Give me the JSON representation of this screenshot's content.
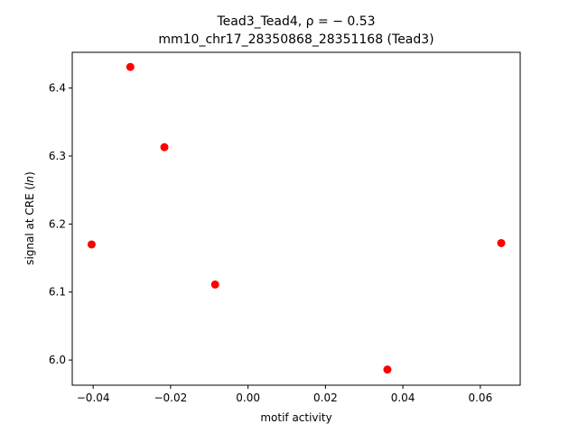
{
  "chart_data": {
    "type": "scatter",
    "title_line1": "Tead3_Tead4, ρ = − 0.53",
    "title_line2": "mm10_chr17_28350868_28351168 (Tead3)",
    "xlabel": "motif activity",
    "ylabel_prefix": "signal at CRE (",
    "ylabel_italic": "ln",
    "ylabel_suffix": ")",
    "xlim": [
      -0.0454,
      0.0703
    ],
    "ylim": [
      5.963,
      6.4525
    ],
    "x_ticks": [
      {
        "value": -0.04,
        "label": "−0.04"
      },
      {
        "value": -0.02,
        "label": "−0.02"
      },
      {
        "value": 0.0,
        "label": "0.00"
      },
      {
        "value": 0.02,
        "label": "0.02"
      },
      {
        "value": 0.04,
        "label": "0.04"
      },
      {
        "value": 0.06,
        "label": "0.06"
      }
    ],
    "y_ticks": [
      {
        "value": 6.0,
        "label": "6.0"
      },
      {
        "value": 6.1,
        "label": "6.1"
      },
      {
        "value": 6.2,
        "label": "6.2"
      },
      {
        "value": 6.3,
        "label": "6.3"
      },
      {
        "value": 6.4,
        "label": "6.4"
      }
    ],
    "points": [
      {
        "x": -0.0404,
        "y": 6.17
      },
      {
        "x": -0.0304,
        "y": 6.431
      },
      {
        "x": -0.0216,
        "y": 6.313
      },
      {
        "x": -0.0085,
        "y": 6.111
      },
      {
        "x": 0.036,
        "y": 5.986
      },
      {
        "x": 0.0654,
        "y": 6.172
      }
    ],
    "marker_color": "#ff0000",
    "grid": false,
    "legend": false
  }
}
